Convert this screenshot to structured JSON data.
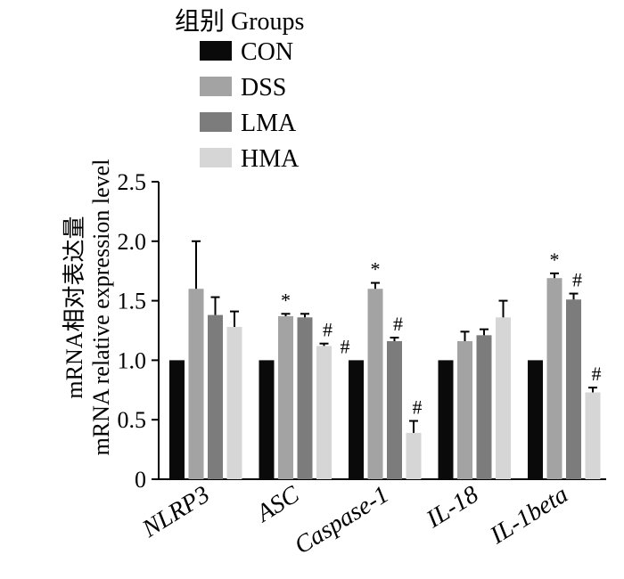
{
  "chart_data": {
    "type": "bar",
    "categories": [
      "NLRP3",
      "ASC",
      "Caspase-1",
      "IL-18",
      "IL-1beta"
    ],
    "series": [
      {
        "name": "CON",
        "values": [
          1.0,
          1.0,
          1.0,
          1.0,
          1.0
        ],
        "errors": [
          0,
          0,
          0,
          0,
          0
        ],
        "marks": [
          "",
          "",
          "#",
          "",
          ""
        ],
        "color": "#0a0a0a"
      },
      {
        "name": "DSS",
        "values": [
          1.6,
          1.37,
          1.6,
          1.16,
          1.69
        ],
        "errors": [
          0.4,
          0.02,
          0.05,
          0.08,
          0.04
        ],
        "marks": [
          "",
          "*",
          "*",
          "",
          "*"
        ],
        "color": "#a3a3a3"
      },
      {
        "name": "LMA",
        "values": [
          1.38,
          1.36,
          1.16,
          1.21,
          1.51
        ],
        "errors": [
          0.15,
          0.03,
          0.03,
          0.05,
          0.05
        ],
        "marks": [
          "",
          "",
          "#",
          "",
          "#"
        ],
        "color": "#7c7c7c"
      },
      {
        "name": "HMA",
        "values": [
          1.28,
          1.12,
          0.39,
          1.36,
          0.73
        ],
        "errors": [
          0.13,
          0.02,
          0.1,
          0.14,
          0.04
        ],
        "marks": [
          "",
          "#",
          "#",
          "",
          "#"
        ],
        "color": "#d6d6d6"
      }
    ],
    "legend_title": "组别 Groups",
    "legend_position": "top",
    "ylabel_lines": [
      "mRNA相对表达量",
      "mRNA relative expression level"
    ],
    "yticks": [
      "0",
      "0.5",
      "1.0",
      "1.5",
      "2.0",
      "2.5"
    ],
    "ylim": [
      0,
      2.5
    ],
    "grid": false
  }
}
